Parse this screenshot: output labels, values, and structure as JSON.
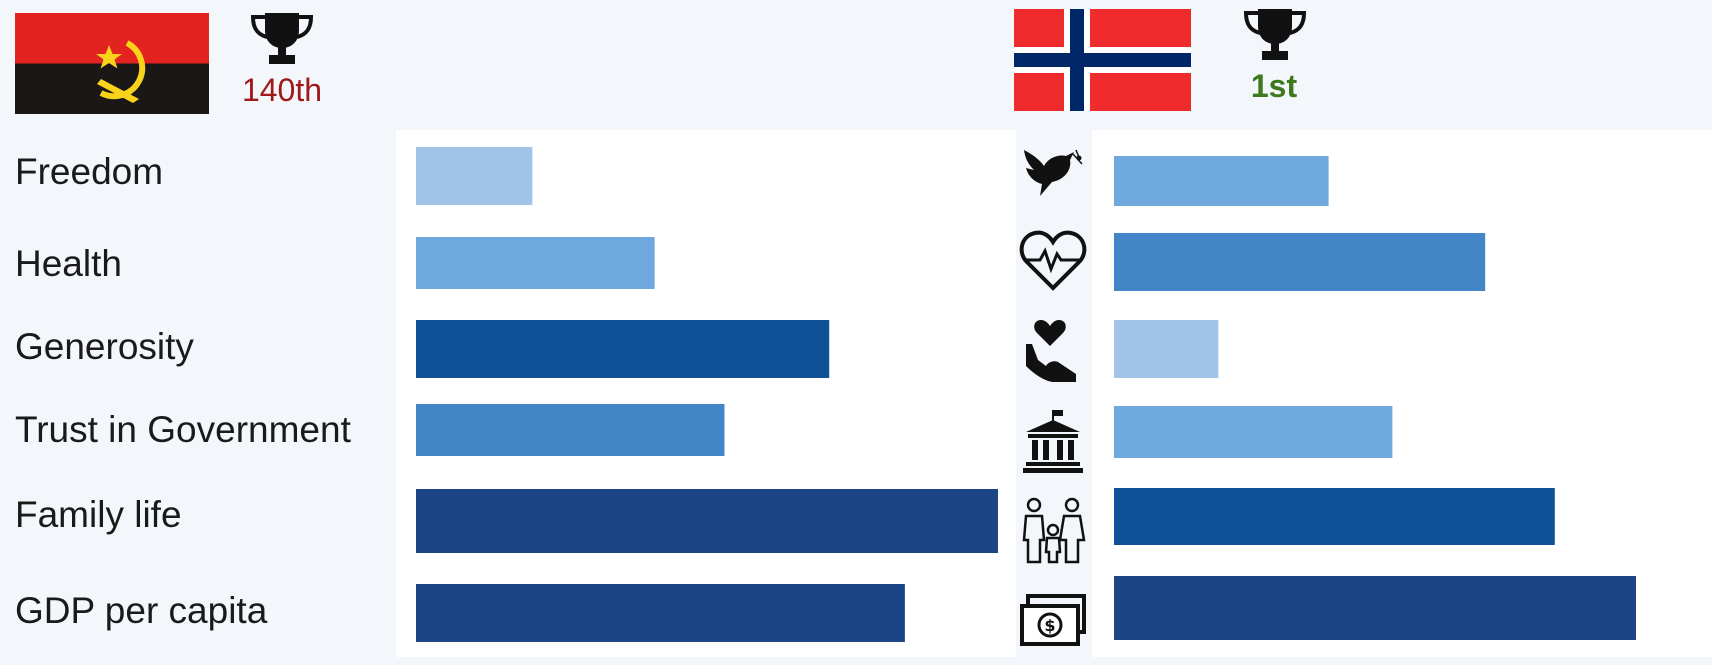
{
  "countries": [
    {
      "name": "Angola",
      "rank": "140th",
      "rank_color": "#a01818"
    },
    {
      "name": "Norway",
      "rank": "1st",
      "rank_color": "#3d7a1e"
    }
  ],
  "icons": {
    "trophy": "trophy-icon",
    "freedom": "dove-icon",
    "health": "heart-pulse-icon",
    "generosity": "heart-in-hand-icon",
    "trust": "government-building-icon",
    "family": "family-icon",
    "gdp": "money-icon"
  },
  "chart_data": {
    "type": "bar",
    "orientation": "horizontal",
    "value_scale": "relative score, 0–1 (unlabeled)",
    "categories": [
      "Freedom",
      "Health",
      "Generosity",
      "Trust in Government",
      "Family life",
      "GDP per capita"
    ],
    "xlim": [
      0,
      1
    ],
    "series": [
      {
        "name": "Angola",
        "values": [
          0.2,
          0.41,
          0.71,
          0.53,
          1.0,
          0.84
        ]
      },
      {
        "name": "Norway",
        "values": [
          0.37,
          0.64,
          0.18,
          0.48,
          0.76,
          0.9
        ]
      }
    ],
    "shade_scale": [
      "#cfe1f4",
      "#a0c5e8",
      "#6fa8dc",
      "#4286c8",
      "#0e5196",
      "#1c4587"
    ]
  }
}
